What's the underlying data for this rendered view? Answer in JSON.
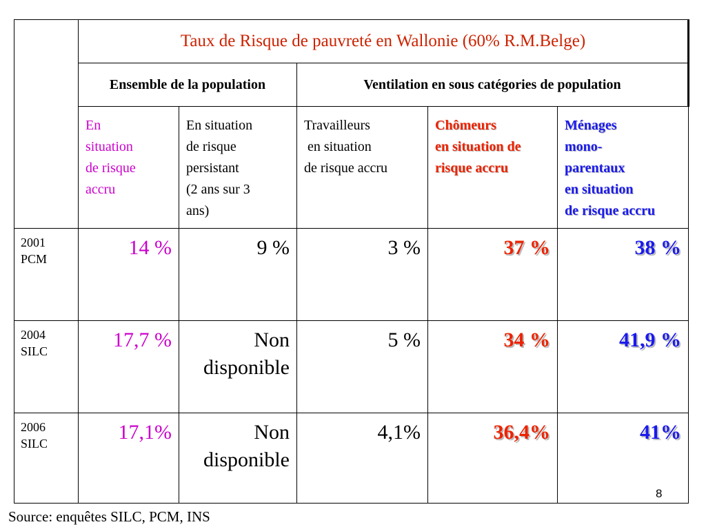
{
  "table": {
    "title": "Taux de Risque de pauvreté en Wallonie (60% R.M.Belge)",
    "group_headers": [
      "Ensemble de la population",
      "Ventilation en sous catégories de population"
    ],
    "subheaders": [
      [
        "En",
        "situation",
        "de risque",
        "accru"
      ],
      [
        "En situation",
        "de risque",
        "persistant",
        "(2 ans sur 3",
        "ans)"
      ],
      [
        "Travailleurs",
        " en situation",
        "de risque accru"
      ],
      [
        "Chômeurs",
        "en situation de",
        "risque accru"
      ],
      [
        "Ménages",
        "mono-",
        "parentaux",
        "en situation",
        "de risque accru"
      ]
    ],
    "rows": [
      {
        "year": [
          "2001",
          "PCM"
        ],
        "values": [
          [
            "14 %"
          ],
          [
            "9 %"
          ],
          [
            "3 %"
          ],
          [
            "37 %"
          ],
          [
            "38 %"
          ]
        ]
      },
      {
        "year": [
          "2004",
          "SILC"
        ],
        "values": [
          [
            "17,7 %"
          ],
          [
            "Non",
            "disponible"
          ],
          [
            "5 %"
          ],
          [
            "34 %"
          ],
          [
            "41,9 %"
          ]
        ]
      },
      {
        "year": [
          "2006",
          "SILC"
        ],
        "values": [
          [
            "17,1%"
          ],
          [
            "Non",
            "disponible"
          ],
          [
            "4,1%"
          ],
          [
            "36,4%"
          ],
          [
            "41%"
          ]
        ]
      }
    ]
  },
  "colors": {
    "title": "#cc2200",
    "magenta": "#cc00cc",
    "red": "#ee2200",
    "blue": "#1a1aee"
  },
  "page_number": "8",
  "source": "Source: enquêtes SILC, PCM, INS"
}
